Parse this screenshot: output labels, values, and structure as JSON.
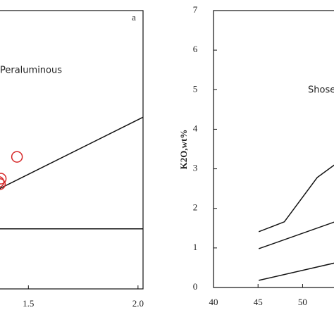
{
  "chart_data": [
    {
      "type": "scatter",
      "label": "a",
      "annotation": "Peraluminous",
      "xlim": [
        1.364,
        2.023
      ],
      "ylim": [
        0.45,
        3.0
      ],
      "xticks": [
        1.5,
        {
          "value": 2,
          "label": "2.0"
        }
      ],
      "x": [
        1.448,
        1.374,
        1.37,
        1.364
      ],
      "values": [
        1.66,
        1.46,
        1.41,
        1.43
      ],
      "color": "#d62728",
      "lines": [
        {
          "x": [
            1.364,
            2.023
          ],
          "y": [
            1,
            1
          ]
        },
        {
          "x": [
            1.364,
            2.023
          ],
          "y": [
            1.364,
            2.023
          ]
        }
      ]
    },
    {
      "type": "line",
      "ylabel": "K2O,wt%",
      "annotation": "Shose",
      "xlim": [
        40,
        54
      ],
      "ylim": [
        0,
        7
      ],
      "xticks": [
        40,
        45,
        50
      ],
      "yticks": [
        0,
        1,
        2,
        3,
        4,
        5,
        6,
        7
      ],
      "lines": [
        {
          "x": [
            45.08,
            47.95,
            51.64,
            54
          ],
          "y": [
            1.41,
            1.66,
            2.78,
            3.17
          ]
        },
        {
          "x": [
            45.08,
            54
          ],
          "y": [
            0.98,
            1.69
          ]
        },
        {
          "x": [
            45.08,
            54
          ],
          "y": [
            0.18,
            0.64
          ]
        }
      ]
    }
  ]
}
